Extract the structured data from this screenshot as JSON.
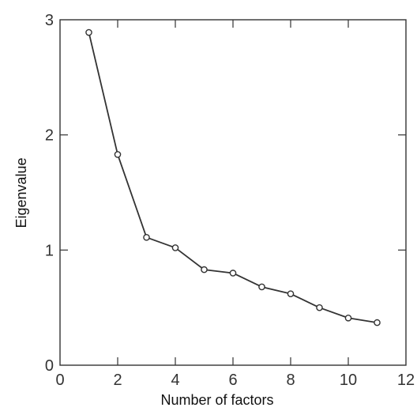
{
  "chart_data": {
    "type": "line",
    "title": "",
    "xlabel": "Number of factors",
    "ylabel": "Eigenvalue",
    "xlim": [
      0,
      12
    ],
    "ylim": [
      0,
      3
    ],
    "x_ticks": [
      0,
      2,
      4,
      6,
      8,
      10,
      12
    ],
    "y_ticks": [
      0,
      1,
      2,
      3
    ],
    "x_tick_labels": [
      "0",
      "2",
      "4",
      "6",
      "8",
      "10",
      "12"
    ],
    "y_tick_labels": [
      "0",
      "1",
      "2",
      "3"
    ],
    "grid": false,
    "x": [
      1,
      2,
      3,
      4,
      5,
      6,
      7,
      8,
      9,
      10,
      11
    ],
    "series": [
      {
        "values": [
          2.89,
          1.83,
          1.11,
          1.02,
          0.83,
          0.8,
          0.68,
          0.62,
          0.5,
          0.41,
          0.37
        ]
      }
    ],
    "colors": {
      "line": "#333333",
      "marker_stroke": "#333333",
      "marker_fill": "#ffffff",
      "frame": "#333333",
      "background": "#ffffff"
    }
  }
}
